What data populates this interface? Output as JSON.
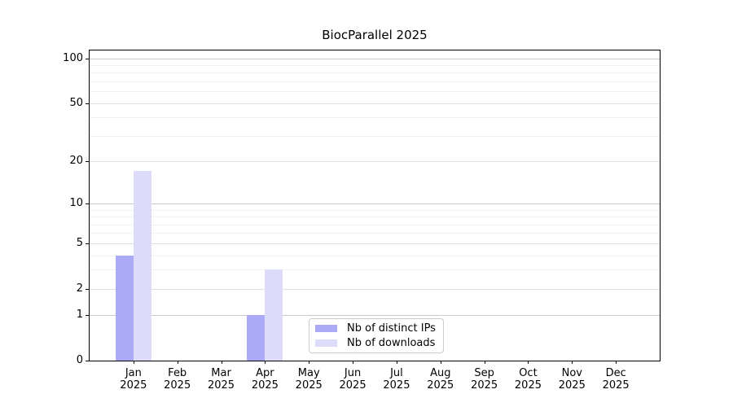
{
  "title": "BiocParallel 2025",
  "chart_data": {
    "type": "bar",
    "title": "BiocParallel 2025",
    "categories": [
      "Jan",
      "Feb",
      "Mar",
      "Apr",
      "May",
      "Jun",
      "Jul",
      "Aug",
      "Sep",
      "Oct",
      "Nov",
      "Dec"
    ],
    "year_label": "2025",
    "series": [
      {
        "name": "Nb of distinct IPs",
        "color": "#aaaaf7",
        "values": [
          4,
          0,
          0,
          1,
          0,
          0,
          0,
          0,
          0,
          0,
          0,
          0
        ]
      },
      {
        "name": "Nb of downloads",
        "color": "#dcdcfa",
        "values": [
          17,
          0,
          0,
          3,
          0,
          0,
          0,
          0,
          0,
          0,
          0,
          0
        ]
      }
    ],
    "yscale": "log1p",
    "ylim": [
      0,
      113
    ],
    "yticks": [
      0,
      1,
      2,
      5,
      10,
      20,
      50,
      100
    ],
    "grid": true,
    "gridline_values": {
      "minor": [
        3,
        4,
        6,
        7,
        8,
        9,
        30,
        40,
        60,
        70,
        80,
        90
      ],
      "mid": [
        2,
        5,
        20,
        50
      ],
      "major": [
        1,
        10,
        100
      ]
    },
    "legend_position": "lower center"
  },
  "colors": {
    "background": "#ffffff",
    "axis": "#000000",
    "text": "#000000",
    "grid_major": "#c8c8c8",
    "grid_mid": "#e0e0e0",
    "grid_minor": "#f1f1f1",
    "legend_border": "#cccccc",
    "bar_distinct_ips": "#aaaaf7",
    "bar_downloads": "#dcdcfa"
  }
}
